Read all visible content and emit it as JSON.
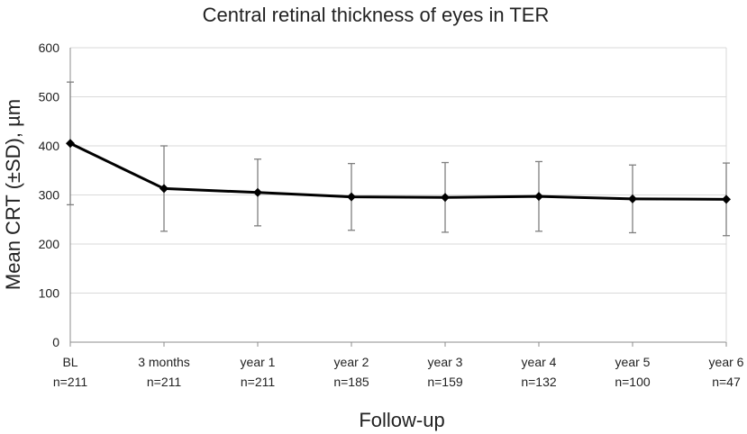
{
  "chart_data": {
    "type": "line",
    "title": "Central retinal thickness of eyes in TER",
    "xlabel": "Follow-up",
    "ylabel": "Mean CRT (±SD), µm",
    "ylim": [
      0,
      600
    ],
    "yticks": [
      0,
      100,
      200,
      300,
      400,
      500,
      600
    ],
    "grid": true,
    "categories": [
      "BL",
      "3 months",
      "year 1",
      "year 2",
      "year 3",
      "year 4",
      "year 5",
      "year 6"
    ],
    "n_labels": [
      "n=211",
      "n=211",
      "n=211",
      "n=185",
      "n=159",
      "n=132",
      "n=100",
      "n=47"
    ],
    "series": [
      {
        "name": "Mean CRT",
        "values": [
          405,
          313,
          305,
          296,
          295,
          297,
          292,
          291
        ],
        "sd": [
          125,
          87,
          68,
          68,
          71,
          71,
          69,
          74
        ]
      }
    ]
  }
}
